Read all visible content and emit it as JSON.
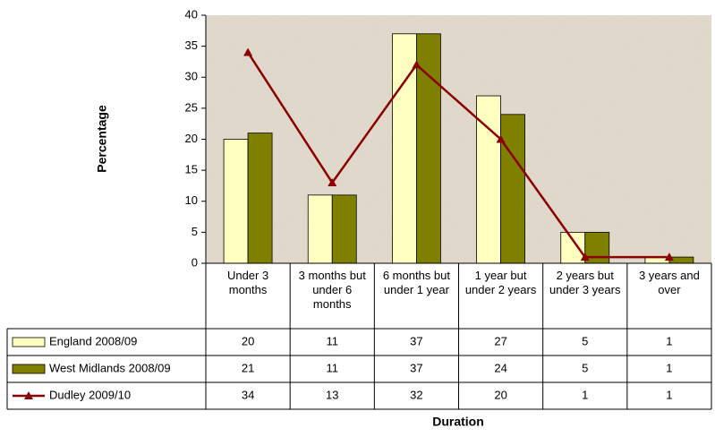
{
  "chart_data": {
    "type": "bar",
    "y_label": "Percentage",
    "x_label": "Duration",
    "categories": [
      "Under 3 months",
      "3 months but under 6 months",
      "6 months but under 1 year",
      "1 year but under 2 years",
      "2 years but under 3 years",
      "3 years and over"
    ],
    "series": [
      {
        "name": "England 2008/09",
        "type": "bar",
        "color": "#ffffc0",
        "values": [
          20,
          11,
          37,
          27,
          5,
          1
        ]
      },
      {
        "name": "West Midlands 2008/09",
        "type": "bar",
        "color": "#808000",
        "values": [
          21,
          11,
          37,
          24,
          5,
          1
        ]
      },
      {
        "name": "Dudley 2009/10",
        "type": "line",
        "color": "#8b0000",
        "values": [
          34,
          13,
          32,
          20,
          1,
          1
        ]
      }
    ],
    "ylim": [
      0,
      40
    ],
    "yticks": [
      0,
      5,
      10,
      15,
      20,
      25,
      30,
      35,
      40
    ],
    "grid": false
  }
}
